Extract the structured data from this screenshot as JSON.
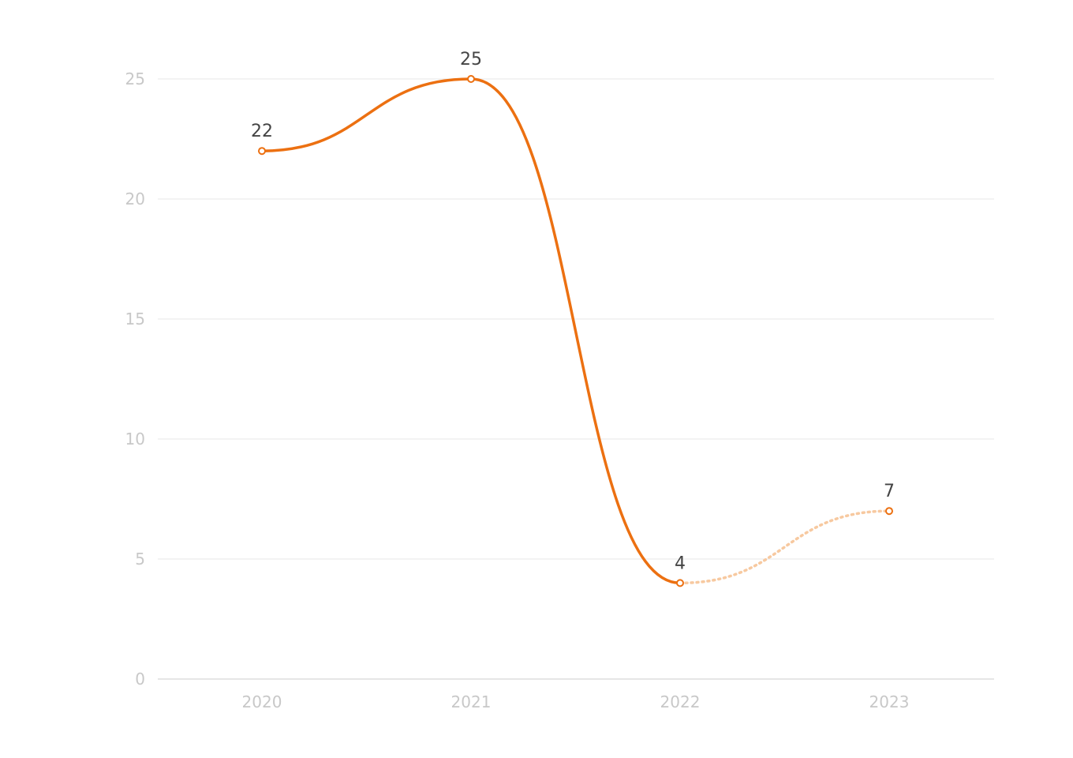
{
  "chart_data": {
    "type": "line",
    "categories": [
      "2020",
      "2021",
      "2022",
      "2023"
    ],
    "series": [
      {
        "values": [
          22,
          25,
          4,
          7
        ],
        "projected_from_index": 2
      }
    ],
    "y_ticks": [
      "0",
      "5",
      "10",
      "15",
      "20",
      "25"
    ],
    "ylim": [
      0,
      25
    ],
    "grid": true,
    "colors": {
      "line": "#ec7011",
      "projected_line": "#f7c9a0",
      "marker_fill": "#ffffff",
      "grid": "#efefef",
      "axis": "#dddddd",
      "tick_text": "#c8c8c8",
      "data_label_text": "#444444"
    }
  }
}
